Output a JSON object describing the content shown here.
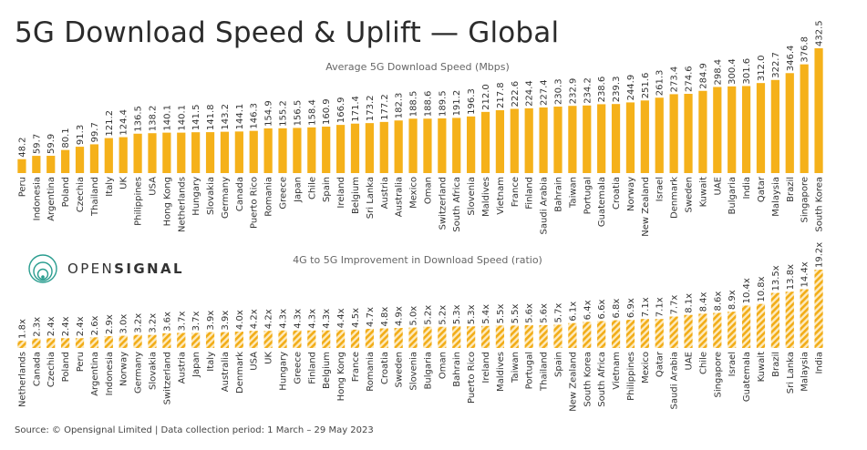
{
  "title": "5G Download Speed & Uplift — Global",
  "source": "Source: © Opensignal Limited  |  Data collection period: 1 March – 29 May 2023",
  "logo": {
    "part1": "OPEN",
    "part2": "SIGNAL"
  },
  "colors": {
    "bar": "#f5b11a",
    "stripe_bg": "#fdebc0",
    "stripe": "#f2ad18"
  },
  "chart_data": [
    {
      "type": "bar",
      "title": "Average 5G Download Speed (Mbps)",
      "categories": [
        "Peru",
        "Indonesia",
        "Argentina",
        "Poland",
        "Czechia",
        "Thailand",
        "Italy",
        "UK",
        "Philippines",
        "USA",
        "Hong Kong",
        "Netherlands",
        "Hungary",
        "Slovakia",
        "Germany",
        "Canada",
        "Puerto Rico",
        "Romania",
        "Greece",
        "Japan",
        "Chile",
        "Spain",
        "Ireland",
        "Belgium",
        "Sri Lanka",
        "Austria",
        "Australia",
        "Mexico",
        "Oman",
        "Switzerland",
        "South Africa",
        "Slovenia",
        "Maldives",
        "Vietnam",
        "France",
        "Finland",
        "Saudi Arabia",
        "Bahrain",
        "Taiwan",
        "Portugal",
        "Guatemala",
        "Croatia",
        "Norway",
        "New Zealand",
        "Israel",
        "Denmark",
        "Sweden",
        "Kuwait",
        "UAE",
        "Bulgaria",
        "India",
        "Qatar",
        "Malaysia",
        "Brazil",
        "Singapore",
        "South Korea"
      ],
      "values": [
        48.2,
        59.7,
        59.9,
        80.1,
        91.3,
        99.7,
        121.2,
        124.4,
        136.5,
        138.2,
        140.1,
        140.1,
        141.5,
        141.8,
        143.2,
        144.1,
        146.3,
        154.9,
        155.2,
        156.5,
        158.4,
        160.9,
        166.9,
        171.4,
        173.2,
        177.2,
        182.3,
        188.5,
        188.6,
        189.5,
        191.2,
        196.3,
        212.0,
        217.8,
        222.6,
        224.4,
        227.4,
        230.3,
        232.9,
        234.2,
        238.6,
        239.3,
        244.9,
        251.6,
        261.3,
        273.4,
        274.6,
        284.9,
        298.4,
        300.4,
        301.6,
        312.0,
        322.7,
        346.4,
        376.8,
        432.5
      ],
      "value_labels": [
        "48.2",
        "59.7",
        "59.9",
        "80.1",
        "91.3",
        "99.7",
        "121.2",
        "124.4",
        "136.5",
        "138.2",
        "140.1",
        "140.1",
        "141.5",
        "141.8",
        "143.2",
        "144.1",
        "146.3",
        "154.9",
        "155.2",
        "156.5",
        "158.4",
        "160.9",
        "166.9",
        "171.4",
        "173.2",
        "177.2",
        "182.3",
        "188.5",
        "188.6",
        "189.5",
        "191.2",
        "196.3",
        "212.0",
        "217.8",
        "222.6",
        "224.4",
        "227.4",
        "230.3",
        "232.9",
        "234.2",
        "238.6",
        "239.3",
        "244.9",
        "251.6",
        "261.3",
        "273.4",
        "274.6",
        "284.9",
        "298.4",
        "300.4",
        "301.6",
        "312.0",
        "322.7",
        "346.4",
        "376.8",
        "432.5"
      ],
      "ylim": [
        0,
        432.5
      ],
      "grid": false
    },
    {
      "type": "bar",
      "title": "4G to 5G  Improvement in Download Speed (ratio)",
      "categories": [
        "Netherlands",
        "Canada",
        "Czechia",
        "Poland",
        "Peru",
        "Argentina",
        "Indonesia",
        "Norway",
        "Germany",
        "Slovakia",
        "Switzerland",
        "Austria",
        "Japan",
        "Italy",
        "Australia",
        "Denmark",
        "USA",
        "UK",
        "Hungary",
        "Greece",
        "Finland",
        "Belgium",
        "Hong Kong",
        "France",
        "Romania",
        "Croatia",
        "Sweden",
        "Slovenia",
        "Bulgaria",
        "Oman",
        "Bahrain",
        "Puerto Rico",
        "Ireland",
        "Maldives",
        "Taiwan",
        "Portugal",
        "Thailand",
        "Spain",
        "New Zealand",
        "South Korea",
        "South Africa",
        "Vietnam",
        "Philippines",
        "Mexico",
        "Qatar",
        "Saudi Arabia",
        "UAE",
        "Chile",
        "Singapore",
        "Israel",
        "Guatemala",
        "Kuwait",
        "Brazil",
        "Sri Lanka",
        "Malaysia",
        "India"
      ],
      "values": [
        1.8,
        2.3,
        2.4,
        2.4,
        2.4,
        2.6,
        2.9,
        3.0,
        3.2,
        3.2,
        3.6,
        3.7,
        3.7,
        3.9,
        3.9,
        4.0,
        4.2,
        4.2,
        4.3,
        4.3,
        4.3,
        4.3,
        4.4,
        4.5,
        4.7,
        4.8,
        4.9,
        5.0,
        5.2,
        5.2,
        5.3,
        5.3,
        5.4,
        5.5,
        5.5,
        5.6,
        5.6,
        5.7,
        6.1,
        6.4,
        6.6,
        6.8,
        6.9,
        7.1,
        7.1,
        7.7,
        8.1,
        8.4,
        8.6,
        8.9,
        10.4,
        10.8,
        13.5,
        13.8,
        14.4,
        19.2
      ],
      "value_labels": [
        "1.8x",
        "2.3x",
        "2.4x",
        "2.4x",
        "2.4x",
        "2.6x",
        "2.9x",
        "3.0x",
        "3.2x",
        "3.2x",
        "3.6x",
        "3.7x",
        "3.7x",
        "3.9x",
        "3.9x",
        "4.0x",
        "4.2x",
        "4.2x",
        "4.3x",
        "4.3x",
        "4.3x",
        "4.3x",
        "4.4x",
        "4.5x",
        "4.7x",
        "4.8x",
        "4.9x",
        "5.0x",
        "5.2x",
        "5.2x",
        "5.3x",
        "5.3x",
        "5.4x",
        "5.5x",
        "5.5x",
        "5.6x",
        "5.6x",
        "5.7x",
        "6.1x",
        "6.4x",
        "6.6x",
        "6.8x",
        "6.9x",
        "7.1x",
        "7.1x",
        "7.7x",
        "8.1x",
        "8.4x",
        "8.6x",
        "8.9x",
        "10.4x",
        "10.8x",
        "13.5x",
        "13.8x",
        "14.4x",
        "19.2x"
      ],
      "ylim": [
        0,
        19.2
      ],
      "grid": false
    }
  ]
}
